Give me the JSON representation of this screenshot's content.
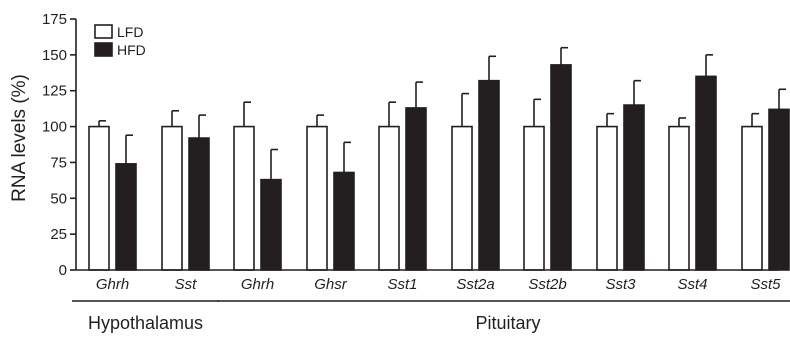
{
  "chart_data": {
    "type": "bar",
    "ylabel": "RNA levels (%)",
    "ylim": [
      0,
      175
    ],
    "yticks": [
      0,
      25,
      50,
      75,
      100,
      125,
      150,
      175
    ],
    "legend": {
      "placement": "top-left",
      "entries": [
        {
          "name": "LFD",
          "fill": "#ffffff"
        },
        {
          "name": "HFD",
          "fill": "#231f20"
        }
      ]
    },
    "categories": [
      "Ghrh",
      "Sst",
      "Ghrh",
      "Ghsr",
      "Sst1",
      "Sst2a",
      "Sst2b",
      "Sst3",
      "Sst4",
      "Sst5"
    ],
    "groups": [
      {
        "label": "Hypothalamus",
        "categories": [
          0,
          1
        ]
      },
      {
        "label": "Pituitary",
        "categories": [
          2,
          3,
          4,
          5,
          6,
          7,
          8,
          9
        ]
      }
    ],
    "series": [
      {
        "name": "LFD",
        "values": [
          100,
          100,
          100,
          100,
          100,
          100,
          100,
          100,
          100,
          100
        ],
        "errors": [
          4,
          11,
          17,
          8,
          17,
          23,
          19,
          9,
          6,
          9
        ]
      },
      {
        "name": "HFD",
        "values": [
          74,
          92,
          63,
          68,
          113,
          132,
          143,
          115,
          135,
          112
        ],
        "errors": [
          20,
          16,
          21,
          21,
          18,
          17,
          12,
          17,
          15,
          14
        ]
      }
    ]
  }
}
